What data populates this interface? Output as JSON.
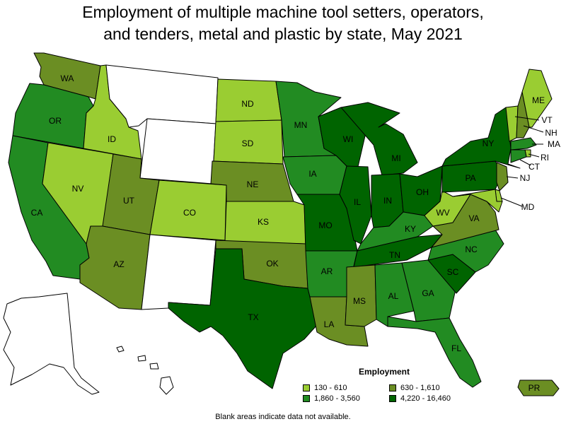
{
  "title_line1": "Employment of multiple machine tool setters, operators,",
  "title_line2": "and tenders, metal and plastic by state, May 2021",
  "legend": {
    "title": "Employment",
    "items": [
      {
        "label": "130 - 610",
        "color": "#9acd32"
      },
      {
        "label": "630 - 1,610",
        "color": "#6b8e23"
      },
      {
        "label": "1,860 - 3,560",
        "color": "#228b22"
      },
      {
        "label": "4,220 - 16,460",
        "color": "#006400"
      }
    ]
  },
  "note": "Blank areas indicate data not available.",
  "colors": {
    "c1": "#9acd32",
    "c2": "#6b8e23",
    "c3": "#228b22",
    "c4": "#006400",
    "none": "#ffffff"
  },
  "states": [
    {
      "id": "WA",
      "label": "WA",
      "cls": "c2"
    },
    {
      "id": "OR",
      "label": "OR",
      "cls": "c3"
    },
    {
      "id": "CA",
      "label": "CA",
      "cls": "c3"
    },
    {
      "id": "ID",
      "label": "ID",
      "cls": "c1"
    },
    {
      "id": "NV",
      "label": "NV",
      "cls": "c1"
    },
    {
      "id": "MT",
      "label": "",
      "cls": "none"
    },
    {
      "id": "WY",
      "label": "",
      "cls": "none"
    },
    {
      "id": "UT",
      "label": "UT",
      "cls": "c2"
    },
    {
      "id": "AZ",
      "label": "AZ",
      "cls": "c2"
    },
    {
      "id": "CO",
      "label": "CO",
      "cls": "c1"
    },
    {
      "id": "NM",
      "label": "",
      "cls": "none"
    },
    {
      "id": "ND",
      "label": "ND",
      "cls": "c1"
    },
    {
      "id": "SD",
      "label": "SD",
      "cls": "c1"
    },
    {
      "id": "NE",
      "label": "NE",
      "cls": "c2"
    },
    {
      "id": "KS",
      "label": "KS",
      "cls": "c1"
    },
    {
      "id": "OK",
      "label": "OK",
      "cls": "c2"
    },
    {
      "id": "TX",
      "label": "TX",
      "cls": "c4"
    },
    {
      "id": "MN",
      "label": "MN",
      "cls": "c3"
    },
    {
      "id": "IA",
      "label": "IA",
      "cls": "c3"
    },
    {
      "id": "MO",
      "label": "MO",
      "cls": "c4"
    },
    {
      "id": "AR",
      "label": "AR",
      "cls": "c3"
    },
    {
      "id": "LA",
      "label": "LA",
      "cls": "c2"
    },
    {
      "id": "WI",
      "label": "WI",
      "cls": "c4"
    },
    {
      "id": "IL",
      "label": "IL",
      "cls": "c4"
    },
    {
      "id": "MI",
      "label": "MI",
      "cls": "c4"
    },
    {
      "id": "IN",
      "label": "IN",
      "cls": "c4"
    },
    {
      "id": "OH",
      "label": "OH",
      "cls": "c4"
    },
    {
      "id": "KY",
      "label": "KY",
      "cls": "c3"
    },
    {
      "id": "TN",
      "label": "TN",
      "cls": "c4"
    },
    {
      "id": "MS",
      "label": "MS",
      "cls": "c2"
    },
    {
      "id": "AL",
      "label": "AL",
      "cls": "c3"
    },
    {
      "id": "GA",
      "label": "GA",
      "cls": "c3"
    },
    {
      "id": "FL",
      "label": "FL",
      "cls": "c3"
    },
    {
      "id": "SC",
      "label": "SC",
      "cls": "c4"
    },
    {
      "id": "NC",
      "label": "NC",
      "cls": "c3"
    },
    {
      "id": "VA",
      "label": "VA",
      "cls": "c2"
    },
    {
      "id": "WV",
      "label": "WV",
      "cls": "c1"
    },
    {
      "id": "PA",
      "label": "PA",
      "cls": "c4"
    },
    {
      "id": "NY",
      "label": "NY",
      "cls": "c4"
    },
    {
      "id": "VT",
      "label": "VT",
      "cls": "c1"
    },
    {
      "id": "NH",
      "label": "NH",
      "cls": "c2"
    },
    {
      "id": "ME",
      "label": "ME",
      "cls": "c1"
    },
    {
      "id": "MA",
      "label": "MA",
      "cls": "c3"
    },
    {
      "id": "RI",
      "label": "RI",
      "cls": "c1"
    },
    {
      "id": "CT",
      "label": "CT",
      "cls": "c3"
    },
    {
      "id": "NJ",
      "label": "NJ",
      "cls": "c2"
    },
    {
      "id": "DE",
      "label": "",
      "cls": "c1"
    },
    {
      "id": "MD",
      "label": "MD",
      "cls": "c1"
    },
    {
      "id": "AK",
      "label": "",
      "cls": "none"
    },
    {
      "id": "HI",
      "label": "",
      "cls": "none"
    },
    {
      "id": "PR",
      "label": "PR",
      "cls": "c2"
    }
  ]
}
